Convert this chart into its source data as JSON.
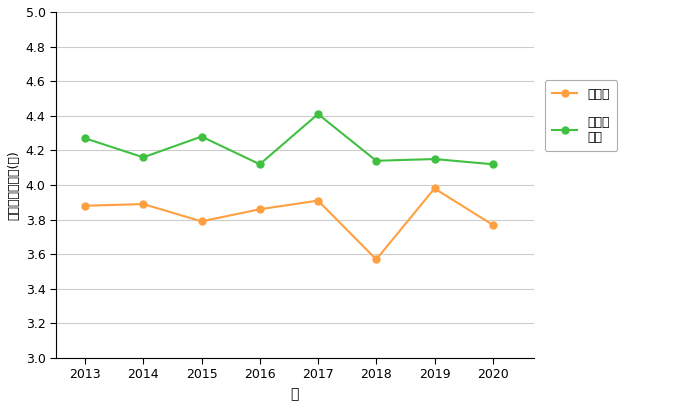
{
  "title": "",
  "years": [
    2013,
    2014,
    2015,
    2016,
    2017,
    2018,
    2019,
    2020
  ],
  "urban": [
    3.88,
    3.89,
    3.79,
    3.86,
    3.91,
    3.57,
    3.98,
    3.77
  ],
  "non_urban": [
    4.27,
    4.16,
    4.28,
    4.12,
    4.41,
    4.14,
    4.15,
    4.12
  ],
  "urban_color": "#FFA040",
  "non_urban_color": "#40C040",
  "urban_label": "市街地",
  "non_urban_label": "市街地\n以外",
  "xlabel": "年",
  "ylabel": "平均巣立ち雛数(羽)",
  "ylim": [
    3.0,
    5.0
  ],
  "yticks": [
    3.0,
    3.2,
    3.4,
    3.6,
    3.8,
    4.0,
    4.2,
    4.4,
    4.6,
    4.8,
    5.0
  ],
  "background_color": "#ffffff",
  "grid_color": "#cccccc",
  "marker": "o",
  "markersize": 5,
  "linewidth": 1.5
}
